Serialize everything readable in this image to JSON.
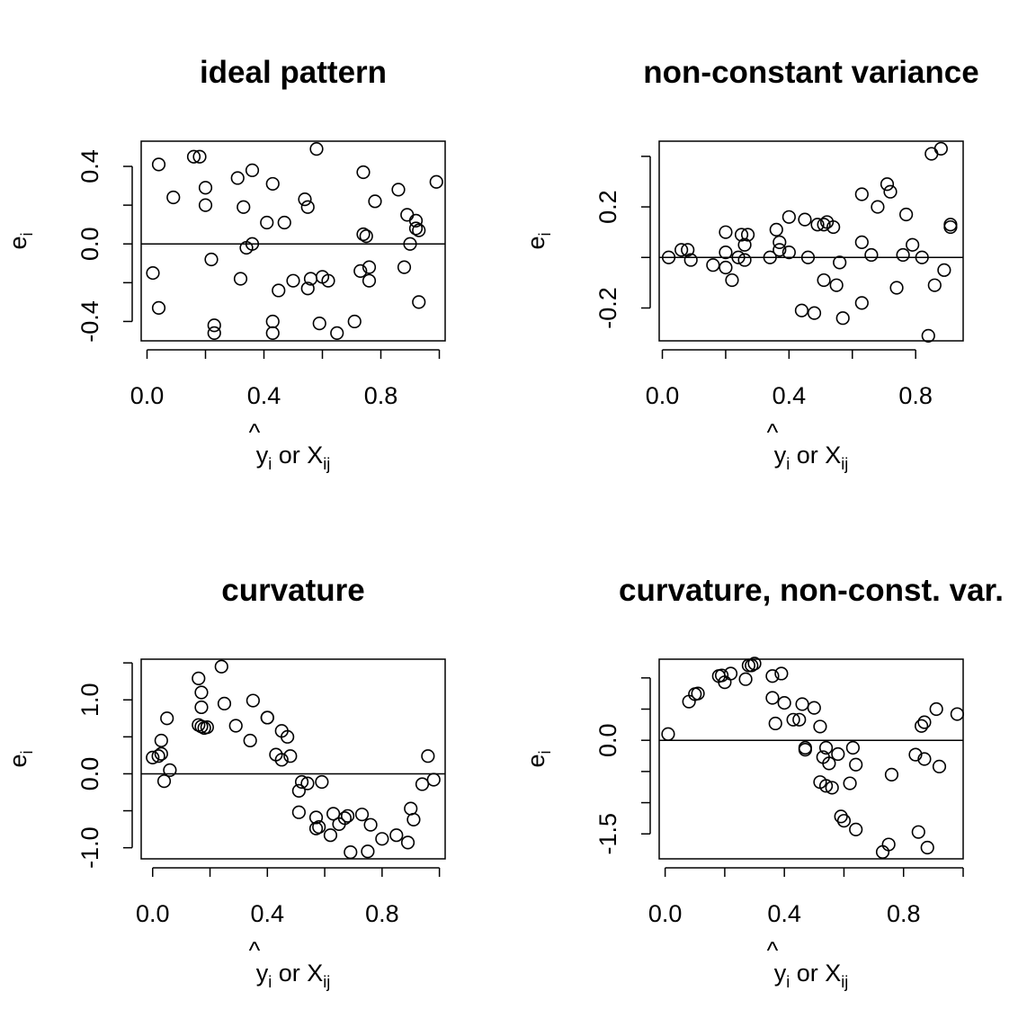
{
  "chart_data": [
    {
      "type": "scatter",
      "title": "ideal pattern",
      "xlabel": {
        "hat": "^",
        "base": "y",
        "sub": "i",
        "mid": " or X",
        "sub2": "ij"
      },
      "ylabel": {
        "base": "e",
        "sub": "i"
      },
      "xlim": [
        -0.02,
        1.02
      ],
      "ylim": [
        -0.5,
        0.53
      ],
      "xticks": [
        {
          "v": 0,
          "label": "0.0"
        },
        {
          "v": 0.2,
          "label": ""
        },
        {
          "v": 0.4,
          "label": "0.4"
        },
        {
          "v": 0.6,
          "label": ""
        },
        {
          "v": 0.8,
          "label": "0.8"
        },
        {
          "v": 1.0,
          "label": ""
        }
      ],
      "yticks": [
        {
          "v": -0.4,
          "label": "-0.4"
        },
        {
          "v": -0.2,
          "label": ""
        },
        {
          "v": 0,
          "label": "0.0"
        },
        {
          "v": 0.2,
          "label": ""
        },
        {
          "v": 0.4,
          "label": "0.4"
        }
      ],
      "hline": 0,
      "points": [
        [
          0.02,
          -0.15
        ],
        [
          0.04,
          0.41
        ],
        [
          0.04,
          -0.33
        ],
        [
          0.09,
          0.24
        ],
        [
          0.16,
          0.45
        ],
        [
          0.18,
          0.45
        ],
        [
          0.2,
          0.29
        ],
        [
          0.2,
          0.2
        ],
        [
          0.22,
          -0.08
        ],
        [
          0.23,
          -0.42
        ],
        [
          0.23,
          -0.46
        ],
        [
          0.31,
          0.34
        ],
        [
          0.32,
          -0.18
        ],
        [
          0.33,
          0.19
        ],
        [
          0.34,
          -0.02
        ],
        [
          0.36,
          0.38
        ],
        [
          0.36,
          0.0
        ],
        [
          0.41,
          0.11
        ],
        [
          0.43,
          0.31
        ],
        [
          0.43,
          -0.4
        ],
        [
          0.43,
          -0.46
        ],
        [
          0.45,
          -0.24
        ],
        [
          0.47,
          0.11
        ],
        [
          0.5,
          -0.19
        ],
        [
          0.54,
          0.23
        ],
        [
          0.55,
          0.19
        ],
        [
          0.55,
          -0.23
        ],
        [
          0.56,
          -0.18
        ],
        [
          0.58,
          0.49
        ],
        [
          0.59,
          -0.41
        ],
        [
          0.6,
          -0.17
        ],
        [
          0.62,
          -0.19
        ],
        [
          0.65,
          -0.46
        ],
        [
          0.71,
          -0.4
        ],
        [
          0.73,
          -0.14
        ],
        [
          0.74,
          0.37
        ],
        [
          0.74,
          0.05
        ],
        [
          0.75,
          0.04
        ],
        [
          0.76,
          -0.12
        ],
        [
          0.76,
          -0.19
        ],
        [
          0.78,
          0.22
        ],
        [
          0.86,
          0.28
        ],
        [
          0.88,
          -0.12
        ],
        [
          0.89,
          0.15
        ],
        [
          0.9,
          0.0
        ],
        [
          0.92,
          0.12
        ],
        [
          0.92,
          0.08
        ],
        [
          0.93,
          0.07
        ],
        [
          0.93,
          -0.3
        ],
        [
          0.99,
          0.32
        ]
      ]
    },
    {
      "type": "scatter",
      "title": "non-constant variance",
      "xlabel": {
        "hat": "^",
        "base": "y",
        "sub": "i",
        "mid": " or X",
        "sub2": "ij"
      },
      "ylabel": {
        "base": "e",
        "sub": "i"
      },
      "xlim": [
        -0.01,
        0.95
      ],
      "ylim": [
        -0.33,
        0.46
      ],
      "xticks": [
        {
          "v": 0,
          "label": "0.0"
        },
        {
          "v": 0.2,
          "label": ""
        },
        {
          "v": 0.4,
          "label": "0.4"
        },
        {
          "v": 0.6,
          "label": ""
        },
        {
          "v": 0.8,
          "label": "0.8"
        }
      ],
      "yticks": [
        {
          "v": -0.2,
          "label": "-0.2"
        },
        {
          "v": 0,
          "label": ""
        },
        {
          "v": 0.2,
          "label": "0.2"
        },
        {
          "v": 0.4,
          "label": ""
        }
      ],
      "hline": 0,
      "points": [
        [
          0.02,
          0.0
        ],
        [
          0.06,
          0.03
        ],
        [
          0.08,
          0.03
        ],
        [
          0.09,
          -0.01
        ],
        [
          0.16,
          -0.03
        ],
        [
          0.2,
          0.1
        ],
        [
          0.2,
          0.02
        ],
        [
          0.2,
          -0.04
        ],
        [
          0.22,
          -0.09
        ],
        [
          0.24,
          0.0
        ],
        [
          0.25,
          0.09
        ],
        [
          0.26,
          0.05
        ],
        [
          0.26,
          -0.01
        ],
        [
          0.27,
          0.09
        ],
        [
          0.34,
          0.0
        ],
        [
          0.36,
          0.11
        ],
        [
          0.37,
          0.06
        ],
        [
          0.37,
          0.03
        ],
        [
          0.4,
          0.16
        ],
        [
          0.4,
          0.02
        ],
        [
          0.44,
          -0.21
        ],
        [
          0.45,
          0.15
        ],
        [
          0.46,
          0.0
        ],
        [
          0.48,
          -0.22
        ],
        [
          0.49,
          0.13
        ],
        [
          0.51,
          0.13
        ],
        [
          0.51,
          -0.09
        ],
        [
          0.52,
          0.14
        ],
        [
          0.54,
          0.12
        ],
        [
          0.55,
          -0.11
        ],
        [
          0.56,
          -0.02
        ],
        [
          0.57,
          -0.24
        ],
        [
          0.63,
          0.06
        ],
        [
          0.63,
          0.25
        ],
        [
          0.63,
          -0.18
        ],
        [
          0.66,
          0.01
        ],
        [
          0.68,
          0.2
        ],
        [
          0.71,
          0.29
        ],
        [
          0.72,
          0.26
        ],
        [
          0.74,
          -0.12
        ],
        [
          0.76,
          0.01
        ],
        [
          0.77,
          0.17
        ],
        [
          0.79,
          0.05
        ],
        [
          0.82,
          0.0
        ],
        [
          0.84,
          -0.31
        ],
        [
          0.85,
          0.41
        ],
        [
          0.86,
          -0.11
        ],
        [
          0.88,
          0.43
        ],
        [
          0.89,
          -0.05
        ],
        [
          0.91,
          0.12
        ],
        [
          0.91,
          0.13
        ]
      ]
    },
    {
      "type": "scatter",
      "title": "curvature",
      "xlabel": {
        "hat": "^",
        "base": "y",
        "sub": "i",
        "mid": " or X",
        "sub2": "ij"
      },
      "ylabel": {
        "base": "e",
        "sub": "i"
      },
      "xlim": [
        -0.04,
        1.02
      ],
      "ylim": [
        -1.15,
        1.55
      ],
      "xticks": [
        {
          "v": 0,
          "label": "0.0"
        },
        {
          "v": 0.2,
          "label": ""
        },
        {
          "v": 0.4,
          "label": "0.4"
        },
        {
          "v": 0.6,
          "label": ""
        },
        {
          "v": 0.8,
          "label": "0.8"
        },
        {
          "v": 1.0,
          "label": ""
        }
      ],
      "yticks": [
        {
          "v": -1.0,
          "label": "-1.0"
        },
        {
          "v": -0.5,
          "label": ""
        },
        {
          "v": 0,
          "label": "0.0"
        },
        {
          "v": 0.5,
          "label": ""
        },
        {
          "v": 1.0,
          "label": "1.0"
        },
        {
          "v": 1.5,
          "label": ""
        }
      ],
      "hline": 0,
      "points": [
        [
          0.0,
          0.22
        ],
        [
          0.02,
          0.24
        ],
        [
          0.03,
          0.27
        ],
        [
          0.03,
          0.45
        ],
        [
          0.04,
          -0.1
        ],
        [
          0.05,
          0.75
        ],
        [
          0.06,
          0.05
        ],
        [
          0.16,
          1.29
        ],
        [
          0.16,
          0.66
        ],
        [
          0.17,
          0.64
        ],
        [
          0.17,
          1.1
        ],
        [
          0.17,
          0.9
        ],
        [
          0.18,
          0.62
        ],
        [
          0.19,
          0.63
        ],
        [
          0.24,
          1.45
        ],
        [
          0.25,
          0.95
        ],
        [
          0.29,
          0.65
        ],
        [
          0.34,
          0.45
        ],
        [
          0.35,
          0.99
        ],
        [
          0.4,
          0.76
        ],
        [
          0.4,
          0.76
        ],
        [
          0.43,
          0.26
        ],
        [
          0.45,
          0.58
        ],
        [
          0.45,
          0.19
        ],
        [
          0.47,
          0.5
        ],
        [
          0.48,
          0.24
        ],
        [
          0.51,
          -0.23
        ],
        [
          0.51,
          -0.52
        ],
        [
          0.52,
          -0.11
        ],
        [
          0.54,
          -0.13
        ],
        [
          0.57,
          -0.59
        ],
        [
          0.57,
          -0.74
        ],
        [
          0.58,
          -0.72
        ],
        [
          0.59,
          -0.11
        ],
        [
          0.62,
          -0.83
        ],
        [
          0.63,
          -0.54
        ],
        [
          0.65,
          -0.68
        ],
        [
          0.67,
          -0.6
        ],
        [
          0.68,
          -0.57
        ],
        [
          0.69,
          -1.06
        ],
        [
          0.73,
          -0.55
        ],
        [
          0.75,
          -1.05
        ],
        [
          0.76,
          -0.69
        ],
        [
          0.8,
          -0.88
        ],
        [
          0.85,
          -0.83
        ],
        [
          0.89,
          -0.93
        ],
        [
          0.9,
          -0.47
        ],
        [
          0.91,
          -0.62
        ],
        [
          0.94,
          -0.14
        ],
        [
          0.96,
          0.24
        ],
        [
          0.98,
          -0.08
        ]
      ]
    },
    {
      "type": "scatter",
      "title": "curvature, non-const. var.",
      "xlabel": {
        "hat": "^",
        "base": "y",
        "sub": "i",
        "mid": " or X",
        "sub2": "ij"
      },
      "ylabel": {
        "base": "e",
        "sub": "i"
      },
      "xlim": [
        -0.02,
        1.0
      ],
      "ylim": [
        -1.9,
        1.3
      ],
      "xticks": [
        {
          "v": 0,
          "label": "0.0"
        },
        {
          "v": 0.2,
          "label": ""
        },
        {
          "v": 0.4,
          "label": "0.4"
        },
        {
          "v": 0.6,
          "label": ""
        },
        {
          "v": 0.8,
          "label": "0.8"
        },
        {
          "v": 1.0,
          "label": ""
        }
      ],
      "yticks": [
        {
          "v": -1.5,
          "label": "-1.5"
        },
        {
          "v": -1.0,
          "label": ""
        },
        {
          "v": -0.5,
          "label": ""
        },
        {
          "v": 0,
          "label": "0.0"
        },
        {
          "v": 0.5,
          "label": ""
        },
        {
          "v": 1.0,
          "label": ""
        }
      ],
      "hline": 0,
      "points": [
        [
          0.01,
          0.1
        ],
        [
          0.08,
          0.62
        ],
        [
          0.1,
          0.74
        ],
        [
          0.11,
          0.75
        ],
        [
          0.18,
          1.03
        ],
        [
          0.19,
          1.04
        ],
        [
          0.2,
          0.93
        ],
        [
          0.22,
          1.07
        ],
        [
          0.27,
          0.98
        ],
        [
          0.28,
          1.2
        ],
        [
          0.29,
          1.2
        ],
        [
          0.3,
          1.23
        ],
        [
          0.36,
          0.68
        ],
        [
          0.36,
          1.03
        ],
        [
          0.37,
          0.27
        ],
        [
          0.39,
          1.07
        ],
        [
          0.4,
          0.6
        ],
        [
          0.43,
          0.33
        ],
        [
          0.45,
          0.33
        ],
        [
          0.46,
          0.58
        ],
        [
          0.47,
          -0.12
        ],
        [
          0.47,
          -0.15
        ],
        [
          0.5,
          0.52
        ],
        [
          0.52,
          -0.67
        ],
        [
          0.52,
          0.22
        ],
        [
          0.53,
          -0.27
        ],
        [
          0.54,
          -0.12
        ],
        [
          0.54,
          -0.73
        ],
        [
          0.55,
          -0.37
        ],
        [
          0.56,
          -0.76
        ],
        [
          0.58,
          -0.22
        ],
        [
          0.59,
          -1.22
        ],
        [
          0.6,
          -1.29
        ],
        [
          0.62,
          -0.69
        ],
        [
          0.63,
          -0.12
        ],
        [
          0.64,
          -1.43
        ],
        [
          0.64,
          -0.39
        ],
        [
          0.73,
          -1.79
        ],
        [
          0.75,
          -1.67
        ],
        [
          0.76,
          -0.55
        ],
        [
          0.84,
          -0.23
        ],
        [
          0.85,
          -1.47
        ],
        [
          0.86,
          0.23
        ],
        [
          0.87,
          -0.3
        ],
        [
          0.87,
          0.29
        ],
        [
          0.88,
          -1.72
        ],
        [
          0.91,
          0.5
        ],
        [
          0.92,
          -0.42
        ],
        [
          0.98,
          0.42
        ]
      ]
    }
  ]
}
